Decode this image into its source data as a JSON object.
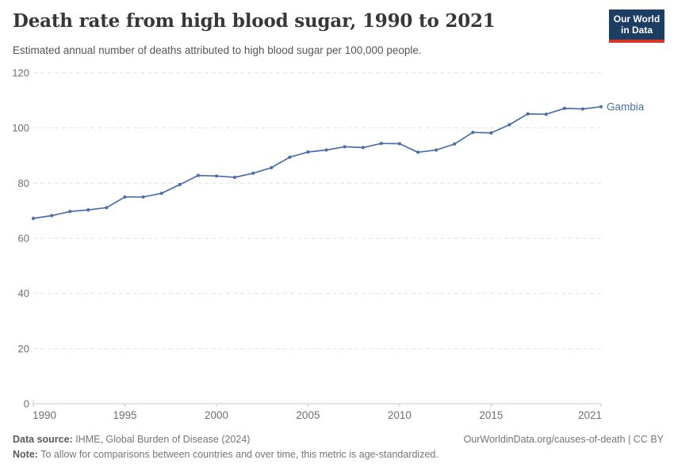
{
  "header": {
    "title": "Death rate from high blood sugar, 1990 to 2021",
    "subtitle": "Estimated annual number of deaths attributed to high blood sugar per 100,000 people.",
    "logo": {
      "line1": "Our World",
      "line2": "in Data"
    }
  },
  "chart_data": {
    "type": "line",
    "title": "Death rate from high blood sugar, 1990 to 2021",
    "x": [
      1990,
      1991,
      1992,
      1993,
      1994,
      1995,
      1996,
      1997,
      1998,
      1999,
      2000,
      2001,
      2002,
      2003,
      2004,
      2005,
      2006,
      2007,
      2008,
      2009,
      2010,
      2011,
      2012,
      2013,
      2014,
      2015,
      2016,
      2017,
      2018,
      2019,
      2020,
      2021
    ],
    "series": [
      {
        "name": "Gambia",
        "values": [
          67.2,
          68.2,
          69.7,
          70.3,
          71.1,
          75.0,
          75.0,
          76.3,
          79.5,
          82.8,
          82.6,
          82.1,
          83.6,
          85.6,
          89.4,
          91.3,
          92.0,
          93.2,
          92.9,
          94.4,
          94.3,
          91.2,
          92.0,
          94.2,
          98.4,
          98.2,
          101.2,
          105.1,
          105.0,
          107.1,
          106.9,
          107.7
        ]
      }
    ],
    "end_label": "Gambia",
    "ylim": [
      0,
      120
    ],
    "y_ticks": [
      0,
      20,
      40,
      60,
      80,
      100,
      120
    ],
    "x_ticks": [
      1990,
      1995,
      2000,
      2005,
      2010,
      2015,
      2021
    ],
    "xlabel": "",
    "ylabel": "",
    "grid": "horizontal-dashed",
    "legend_position": "end-of-line"
  },
  "footer": {
    "source_label": "Data source:",
    "source_text": " IHME, Global Burden of Disease (2024)",
    "link_text": "OurWorldinData.org/causes-of-death | CC BY",
    "note_label": "Note:",
    "note_text": " To allow for comparisons between countries and over time, this metric is age-standardized."
  },
  "colors": {
    "line": "#4b6ea9",
    "entity_label": "#4b6ea9",
    "grid": "#e2e2e2",
    "axis": "#c9c9c9",
    "tick_label": "#6e6e6e",
    "title": "#373737",
    "subtitle": "#555555",
    "footer_text": "#757575",
    "logo_bg": "#1d3d63",
    "logo_bar": "#d8352a"
  }
}
